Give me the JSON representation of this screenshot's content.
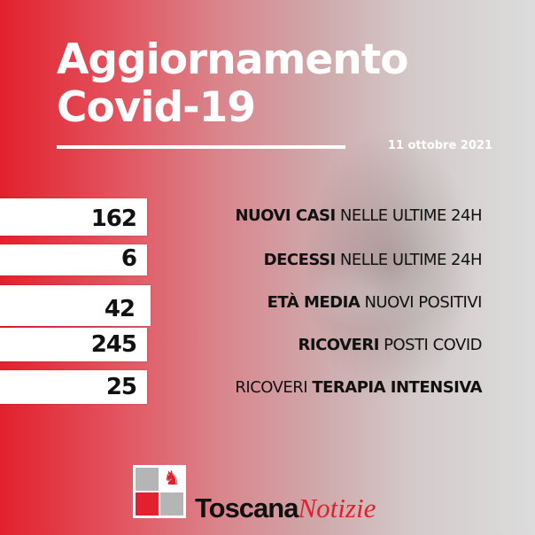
{
  "title": {
    "line1": "Aggiornamento",
    "line2": "Covid-19"
  },
  "date": "11 ottobre 2021",
  "colors": {
    "accent": "#e3202d",
    "background_right": "#dcdcdc",
    "text": "#111111"
  },
  "stats": [
    {
      "value": "162",
      "label_bold": "NUOVI CASI",
      "label_regular": " NELLE ULTIME 24H"
    },
    {
      "value": "6",
      "label_bold": "DECESSI",
      "label_regular": " NELLE ULTIME 24H"
    },
    {
      "value": "42",
      "label_bold": "ETÀ MEDIA",
      "label_regular": " NUOVI POSITIVI"
    },
    {
      "value": "245",
      "label_bold": "RICOVERI",
      "label_regular": " POSTI COVID"
    },
    {
      "value": "25",
      "label_regular_first": "RICOVERI ",
      "label_bold": "TERAPIA INTENSIVA"
    }
  ],
  "logo": {
    "brand_bold": "Toscana",
    "brand_italic": "Notizie",
    "mark": "TN"
  }
}
